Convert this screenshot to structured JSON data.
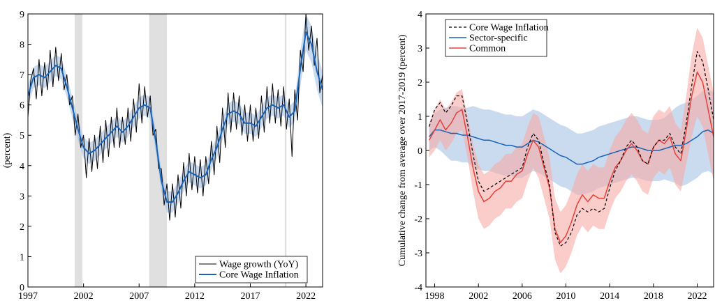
{
  "chart_data": [
    {
      "type": "line",
      "ylabel": "(percent)",
      "legend": "lower right",
      "xlim": [
        1997,
        2023.5
      ],
      "xticks": [
        1997,
        2002,
        2007,
        2012,
        2017,
        2022
      ],
      "ylim": [
        0,
        9
      ],
      "yticks": [
        0,
        1,
        2,
        3,
        4,
        5,
        6,
        7,
        8,
        9
      ],
      "shading": [
        [
          2001.2,
          2001.9
        ],
        [
          2007.9,
          2009.5
        ],
        [
          2020.1,
          2020.25
        ]
      ],
      "x": [
        1997,
        1997.5,
        1998,
        1998.5,
        1999,
        1999.5,
        2000,
        2000.5,
        2001,
        2001.5,
        2002,
        2002.5,
        2003,
        2003.5,
        2004,
        2004.5,
        2005,
        2005.5,
        2006,
        2006.5,
        2007,
        2007.5,
        2008,
        2008.5,
        2009,
        2009.5,
        2010,
        2010.5,
        2011,
        2011.5,
        2012,
        2012.5,
        2013,
        2013.5,
        2014,
        2014.5,
        2015,
        2015.5,
        2016,
        2016.5,
        2017,
        2017.5,
        2018,
        2018.5,
        2019,
        2019.5,
        2020,
        2020.5,
        2021,
        2021.5,
        2022,
        2022.5,
        2023,
        2023.5
      ],
      "series": [
        {
          "name": "Wage growth (YoY)",
          "color": "#000000",
          "width": 1,
          "x": [
            1997,
            1997.25,
            1997.5,
            1997.75,
            1998,
            1998.25,
            1998.5,
            1998.75,
            1999,
            1999.25,
            1999.5,
            1999.75,
            2000,
            2000.25,
            2000.5,
            2000.75,
            2001,
            2001.25,
            2001.5,
            2001.75,
            2002,
            2002.25,
            2002.5,
            2002.75,
            2003,
            2003.25,
            2003.5,
            2003.75,
            2004,
            2004.25,
            2004.5,
            2004.75,
            2005,
            2005.25,
            2005.5,
            2005.75,
            2006,
            2006.25,
            2006.5,
            2006.75,
            2007,
            2007.25,
            2007.5,
            2007.75,
            2008,
            2008.25,
            2008.5,
            2008.75,
            2009,
            2009.25,
            2009.5,
            2009.75,
            2010,
            2010.25,
            2010.5,
            2010.75,
            2011,
            2011.25,
            2011.5,
            2011.75,
            2012,
            2012.25,
            2012.5,
            2012.75,
            2013,
            2013.25,
            2013.5,
            2013.75,
            2014,
            2014.25,
            2014.5,
            2014.75,
            2015,
            2015.25,
            2015.5,
            2015.75,
            2016,
            2016.25,
            2016.5,
            2016.75,
            2017,
            2017.25,
            2017.5,
            2017.75,
            2018,
            2018.25,
            2018.5,
            2018.75,
            2019,
            2019.25,
            2019.5,
            2019.75,
            2020,
            2020.25,
            2020.5,
            2020.75,
            2021,
            2021.25,
            2021.5,
            2021.75,
            2022,
            2022.25,
            2022.5,
            2022.75,
            2023,
            2023.25,
            2023.5
          ],
          "values": [
            5.6,
            6.8,
            7.2,
            6.2,
            7.5,
            6.3,
            7.4,
            6.5,
            7.8,
            6.6,
            7.9,
            6.8,
            7.7,
            6.5,
            7.0,
            6.0,
            6.3,
            5.0,
            5.7,
            4.6,
            5.0,
            3.6,
            4.9,
            3.8,
            5.0,
            3.9,
            5.3,
            4.1,
            5.5,
            4.3,
            5.6,
            4.6,
            5.9,
            4.6,
            5.6,
            4.7,
            5.9,
            4.8,
            6.2,
            5.1,
            6.7,
            5.4,
            6.6,
            5.6,
            6.3,
            5.0,
            5.2,
            3.9,
            3.9,
            2.7,
            3.4,
            2.2,
            3.4,
            2.3,
            3.7,
            2.6,
            4.1,
            3.0,
            4.4,
            3.2,
            4.3,
            3.1,
            4.2,
            3.0,
            4.3,
            3.4,
            4.8,
            3.7,
            5.3,
            4.1,
            5.9,
            4.6,
            6.4,
            5.1,
            6.4,
            5.2,
            6.3,
            5.0,
            6.0,
            4.8,
            6.0,
            4.8,
            5.9,
            4.9,
            6.3,
            5.1,
            6.6,
            5.4,
            6.7,
            5.4,
            6.5,
            5.3,
            6.6,
            5.2,
            6.2,
            4.3,
            6.5,
            5.5,
            7.8,
            7.1,
            9.0,
            7.8,
            8.6,
            7.3,
            8.2,
            6.4,
            7.0
          ]
        },
        {
          "name": "Core Wage Inflation",
          "color": "#1763b8",
          "width": 2,
          "band_color": "#a7c3e6",
          "values": [
            6.3,
            6.9,
            7.0,
            6.9,
            7.1,
            7.3,
            7.2,
            6.6,
            5.9,
            5.2,
            4.6,
            4.4,
            4.5,
            4.7,
            4.9,
            5.1,
            5.3,
            5.1,
            5.3,
            5.6,
            5.9,
            6.0,
            5.9,
            4.8,
            3.5,
            2.8,
            2.8,
            3.1,
            3.5,
            3.8,
            3.7,
            3.6,
            3.7,
            4.2,
            4.6,
            5.2,
            5.7,
            5.8,
            5.7,
            5.4,
            5.4,
            5.3,
            5.6,
            5.9,
            6.0,
            5.9,
            6.0,
            5.6,
            5.8,
            7.2,
            8.4,
            8.0,
            7.1,
            6.5
          ],
          "lower": [
            5.95,
            6.55,
            6.65,
            6.55,
            6.75,
            6.95,
            6.85,
            6.25,
            5.55,
            4.85,
            4.25,
            4.05,
            4.15,
            4.35,
            4.55,
            4.75,
            4.95,
            4.75,
            4.95,
            5.25,
            5.55,
            5.65,
            5.55,
            4.45,
            3.15,
            2.45,
            2.45,
            2.75,
            3.15,
            3.45,
            3.35,
            3.25,
            3.35,
            3.85,
            4.25,
            4.85,
            5.35,
            5.45,
            5.35,
            5.05,
            5.05,
            4.95,
            5.25,
            5.55,
            5.65,
            5.55,
            5.65,
            5.25,
            5.45,
            6.6,
            7.8,
            7.4,
            6.5,
            5.9
          ],
          "upper": [
            6.65,
            7.25,
            7.35,
            7.25,
            7.45,
            7.65,
            7.55,
            6.95,
            6.25,
            5.55,
            4.95,
            4.75,
            4.85,
            5.05,
            5.25,
            5.45,
            5.65,
            5.45,
            5.65,
            5.95,
            6.25,
            6.35,
            6.25,
            5.15,
            3.85,
            3.15,
            3.15,
            3.45,
            3.85,
            4.15,
            4.05,
            3.95,
            4.05,
            4.55,
            4.95,
            5.55,
            6.05,
            6.15,
            6.05,
            5.75,
            5.75,
            5.65,
            5.95,
            6.25,
            6.35,
            6.25,
            6.35,
            5.95,
            6.15,
            7.8,
            9.0,
            8.6,
            7.7,
            7.1
          ]
        }
      ]
    },
    {
      "type": "line",
      "ylabel": "Cumulative change from average over 2017-2019 (percent)",
      "legend": "upper left",
      "xlim": [
        1997.2,
        2023.5
      ],
      "xticks": [
        1998,
        2002,
        2006,
        2010,
        2014,
        2018,
        2022
      ],
      "ylim": [
        -4,
        4
      ],
      "yticks": [
        -4,
        -3,
        -2,
        -1,
        0,
        1,
        2,
        3,
        4
      ],
      "x": [
        1997.5,
        1998,
        1998.5,
        1999,
        1999.5,
        2000,
        2000.5,
        2001,
        2001.5,
        2002,
        2002.5,
        2003,
        2003.5,
        2004,
        2004.5,
        2005,
        2005.5,
        2006,
        2006.5,
        2007,
        2007.5,
        2008,
        2008.5,
        2009,
        2009.5,
        2010,
        2010.5,
        2011,
        2011.5,
        2012,
        2012.5,
        2013,
        2013.5,
        2014,
        2014.5,
        2015,
        2015.5,
        2016,
        2016.5,
        2017,
        2017.5,
        2018,
        2018.5,
        2019,
        2019.5,
        2020,
        2020.5,
        2021,
        2021.5,
        2022,
        2022.5,
        2023,
        2023.5
      ],
      "series": [
        {
          "name": "Core Wage Inflation",
          "color": "#000000",
          "width": 1.2,
          "dashed": true,
          "values": [
            0.7,
            1.2,
            1.4,
            1.1,
            1.3,
            1.6,
            1.6,
            0.8,
            -0.1,
            -0.9,
            -1.2,
            -1.1,
            -1.0,
            -0.9,
            -0.8,
            -0.7,
            -0.6,
            -0.5,
            0.1,
            0.5,
            0.3,
            -0.4,
            -1.0,
            -2.4,
            -2.8,
            -2.7,
            -2.4,
            -1.9,
            -1.7,
            -1.8,
            -1.7,
            -1.8,
            -1.7,
            -1.1,
            -0.6,
            -0.3,
            0.1,
            0.3,
            0.1,
            -0.3,
            -0.4,
            0.1,
            0.3,
            0.3,
            0.5,
            0.1,
            -0.1,
            0.8,
            1.9,
            2.9,
            2.6,
            1.8,
            0.9
          ]
        },
        {
          "name": "Sector-specific",
          "color": "#1763b8",
          "width": 1.5,
          "band_color": "#a7c3e6",
          "values": [
            0.4,
            0.6,
            0.6,
            0.55,
            0.5,
            0.5,
            0.45,
            0.45,
            0.4,
            0.35,
            0.3,
            0.3,
            0.25,
            0.2,
            0.15,
            0.15,
            0.1,
            0.1,
            0.2,
            0.3,
            0.25,
            0.15,
            0.05,
            -0.05,
            -0.15,
            -0.2,
            -0.3,
            -0.4,
            -0.4,
            -0.35,
            -0.3,
            -0.2,
            -0.15,
            -0.1,
            -0.05,
            0,
            0.05,
            0.1,
            0.1,
            0.05,
            0,
            0,
            0,
            0.05,
            0.1,
            0.15,
            0.15,
            0.2,
            0.3,
            0.4,
            0.55,
            0.6,
            0.5
          ],
          "lower": [
            0,
            0.1,
            0,
            -0.15,
            -0.3,
            -0.3,
            -0.35,
            -0.35,
            -0.5,
            -0.55,
            -0.6,
            -0.6,
            -0.65,
            -0.7,
            -0.75,
            -0.75,
            -0.8,
            -0.8,
            -0.7,
            -0.6,
            -0.65,
            -0.75,
            -0.85,
            -0.95,
            -1.05,
            -1.1,
            -1.2,
            -1.3,
            -1.3,
            -1.25,
            -1.2,
            -1.1,
            -1.05,
            -1.0,
            -0.95,
            -0.9,
            -0.85,
            -0.8,
            -0.8,
            -0.85,
            -0.9,
            -0.9,
            -0.9,
            -0.85,
            -0.9,
            -0.95,
            -1.05,
            -1.0,
            -0.9,
            -0.8,
            -0.65,
            -0.6,
            -0.7
          ],
          "upper": [
            0.8,
            1.1,
            1.2,
            1.25,
            1.3,
            1.3,
            1.25,
            1.25,
            1.3,
            1.25,
            1.2,
            1.2,
            1.15,
            1.1,
            1.05,
            1.05,
            1.0,
            1.0,
            1.1,
            1.2,
            1.15,
            1.05,
            0.95,
            0.85,
            0.75,
            0.7,
            0.6,
            0.5,
            0.5,
            0.55,
            0.6,
            0.7,
            0.75,
            0.8,
            0.85,
            0.9,
            0.95,
            1.0,
            1.0,
            0.95,
            0.9,
            0.9,
            0.9,
            0.95,
            1.1,
            1.25,
            1.35,
            1.4,
            1.5,
            1.6,
            1.75,
            1.8,
            1.7
          ]
        },
        {
          "name": "Common",
          "color": "#e5403a",
          "width": 1.5,
          "band_color": "#f6aaa6",
          "values": [
            0.3,
            0.6,
            0.9,
            0.6,
            0.8,
            1.1,
            1.2,
            0.4,
            -0.5,
            -1.2,
            -1.5,
            -1.4,
            -1.2,
            -1.1,
            -0.9,
            -0.9,
            -0.7,
            -0.6,
            -0.1,
            0.3,
            0.1,
            -0.5,
            -1.1,
            -2.3,
            -2.7,
            -2.5,
            -2.1,
            -1.6,
            -1.3,
            -1.5,
            -1.3,
            -1.4,
            -1.4,
            -0.9,
            -0.5,
            -0.3,
            0,
            0.2,
            0,
            -0.3,
            -0.4,
            0.1,
            0.3,
            0.2,
            0.4,
            -0.1,
            -0.3,
            0.6,
            1.6,
            2.3,
            2.0,
            1.2,
            0.4
          ],
          "lower": [
            -0.2,
            0,
            0.3,
            0,
            0.2,
            0.5,
            0.6,
            -0.2,
            -1.2,
            -2.0,
            -2.3,
            -2.2,
            -2.0,
            -1.9,
            -1.7,
            -1.7,
            -1.5,
            -1.4,
            -0.9,
            -0.5,
            -0.8,
            -1.4,
            -2.0,
            -3.2,
            -3.6,
            -3.4,
            -3.0,
            -2.5,
            -2.2,
            -2.4,
            -2.2,
            -2.3,
            -2.3,
            -1.8,
            -1.4,
            -1.2,
            -0.9,
            -0.7,
            -0.9,
            -1.2,
            -1.3,
            -0.8,
            -0.6,
            -0.7,
            -0.5,
            -1.0,
            -1.2,
            -0.4,
            0.4,
            1.0,
            0.7,
            -0.1,
            -0.9
          ],
          "upper": [
            0.8,
            1.2,
            1.5,
            1.2,
            1.4,
            1.7,
            1.8,
            1.0,
            0.2,
            -0.4,
            -0.7,
            -0.6,
            -0.4,
            -0.3,
            -0.1,
            -0.1,
            0.1,
            0.2,
            0.7,
            1.1,
            1.0,
            0.4,
            -0.2,
            -1.4,
            -1.8,
            -1.6,
            -1.2,
            -0.7,
            -0.4,
            -0.6,
            -0.4,
            -0.5,
            -0.5,
            0,
            0.4,
            0.6,
            0.9,
            1.1,
            0.9,
            0.6,
            0.5,
            1.0,
            1.2,
            1.1,
            1.3,
            0.8,
            0.6,
            1.6,
            2.8,
            3.6,
            3.3,
            2.5,
            1.7
          ]
        }
      ]
    }
  ]
}
